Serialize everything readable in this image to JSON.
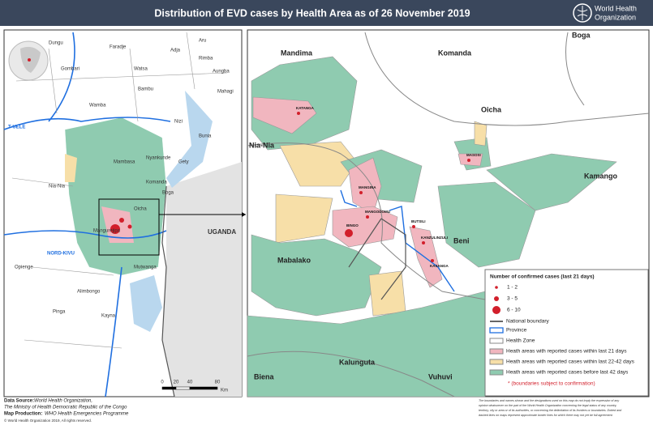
{
  "header": {
    "title": "Distribution of EVD cases by Health Area as of 26 November 2019",
    "logo_line1": "World Health",
    "logo_line2": "Organization"
  },
  "overview_map": {
    "labels": [
      "Dungu",
      "Faradje",
      "Gombari",
      "Watsa",
      "Aru",
      "Adja",
      "Rimba",
      "Aungba",
      "Mahagi",
      "Wamba",
      "Bambu",
      "Nizi",
      "Bunia",
      "Gety",
      "Nyankunde",
      "Mambasa",
      "Nia-Nia",
      "Boga",
      "Komanda",
      "Oicha",
      "Mangurejipa",
      "Opienge",
      "Alimbongo",
      "Pinga",
      "Kayna",
      "Mutwanga"
    ],
    "country": "UGANDA",
    "province_north": "T-UELE",
    "province_south": "NORD-KIVU",
    "scale_ticks": [
      0,
      20,
      40,
      80
    ],
    "scale_unit": "Km"
  },
  "detail_map": {
    "zones": [
      "Mandima",
      "Komanda",
      "Boga",
      "Oicha",
      "Kamango",
      "Nia-Nia",
      "Mabalako",
      "Beni",
      "Kalunguta",
      "Biena",
      "Vuhuvi"
    ],
    "health_areas": [
      "KATANGA",
      "MASOSI",
      "MANGINA",
      "MANGODOMU",
      "BINGO",
      "BUTSILI",
      "KANZULINZULI",
      "KASANGA"
    ]
  },
  "legend": {
    "title": "Number of confirmed cases (last 21 days)",
    "classes": [
      "1 - 2",
      "3 - 5",
      "6 - 10"
    ],
    "items": [
      "National boundary",
      "Province",
      "Health Zone",
      "Heath areas with reported cases within last 21 days",
      "Heath areas with reported cases within last 22-42 days",
      "Heath areas with reported cases before last 42 days"
    ],
    "note": "* (boundaries subject to confirmation)"
  },
  "footer": {
    "source_label": "Data Source:",
    "source": "World Health Organization,",
    "source2": "The Ministry of Health Democratic Republic of the Congo",
    "production_label": "Map Production:",
    "production": "WHO Health Emergencies Programme",
    "copyright": "© World Health Organization 2019, All rights reserved.",
    "disclaimer": [
      "The boundaries and names shown and the designations used on this map do not imply the expression of any",
      "opinion whatsoever on the part of the World Health Organization concerning the legal status of any country,",
      "territory, city or area or of its authorities, or concerning the delimitation of its frontiers or boundaries. Dotted and",
      "dashed lines on maps represent approximate border lines for which there may not yet be full agreement."
    ]
  }
}
